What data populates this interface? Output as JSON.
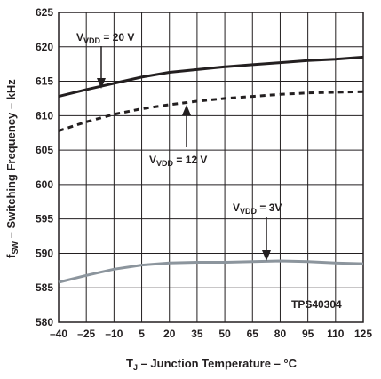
{
  "chart_data": {
    "type": "line",
    "xlabel": {
      "main": "T",
      "sub": "J",
      "rest": " – Junction Temperature – °C"
    },
    "ylabel": {
      "main": "f",
      "sub": "SW",
      "rest": " – Switching Frequency – kHz"
    },
    "x_ticks": [
      "–40",
      "–25",
      "–10",
      "5",
      "20",
      "35",
      "50",
      "65",
      "80",
      "95",
      "110",
      "125"
    ],
    "x_tick_values": [
      -40,
      -25,
      -10,
      5,
      20,
      35,
      50,
      65,
      80,
      95,
      110,
      125
    ],
    "y_ticks": [
      "580",
      "585",
      "590",
      "595",
      "600",
      "605",
      "610",
      "615",
      "620",
      "625"
    ],
    "y_tick_values": [
      580,
      585,
      590,
      595,
      600,
      605,
      610,
      615,
      620,
      625
    ],
    "xlim": [
      -40,
      125
    ],
    "ylim": [
      580,
      625
    ],
    "grid": true,
    "series": [
      {
        "name_main": "V",
        "name_sub": "VDD",
        "name_rest": " = 20 V",
        "style": "solid",
        "color": "#231f20",
        "x": [
          -40,
          -25,
          -10,
          5,
          20,
          35,
          50,
          65,
          80,
          95,
          110,
          125
        ],
        "y": [
          612.8,
          613.8,
          614.7,
          615.6,
          616.3,
          616.7,
          617.1,
          617.4,
          617.7,
          618.0,
          618.2,
          618.5
        ]
      },
      {
        "name_main": "V",
        "name_sub": "VDD",
        "name_rest": " = 12 V",
        "style": "dashed",
        "color": "#231f20",
        "x": [
          -40,
          -25,
          -10,
          5,
          20,
          35,
          50,
          65,
          80,
          95,
          110,
          125
        ],
        "y": [
          607.8,
          609.1,
          610.2,
          611.0,
          611.6,
          612.1,
          612.5,
          612.8,
          613.1,
          613.3,
          613.4,
          613.5
        ]
      },
      {
        "name_main": "V",
        "name_sub": "VDD",
        "name_rest": " = 3V",
        "style": "solid",
        "color": "#8c959d",
        "x": [
          -40,
          -25,
          -10,
          5,
          20,
          35,
          50,
          65,
          80,
          95,
          110,
          125
        ],
        "y": [
          585.8,
          586.8,
          587.7,
          588.3,
          588.6,
          588.7,
          588.7,
          588.8,
          588.9,
          588.8,
          588.6,
          588.5
        ]
      }
    ],
    "part_label": "TPS40304"
  }
}
